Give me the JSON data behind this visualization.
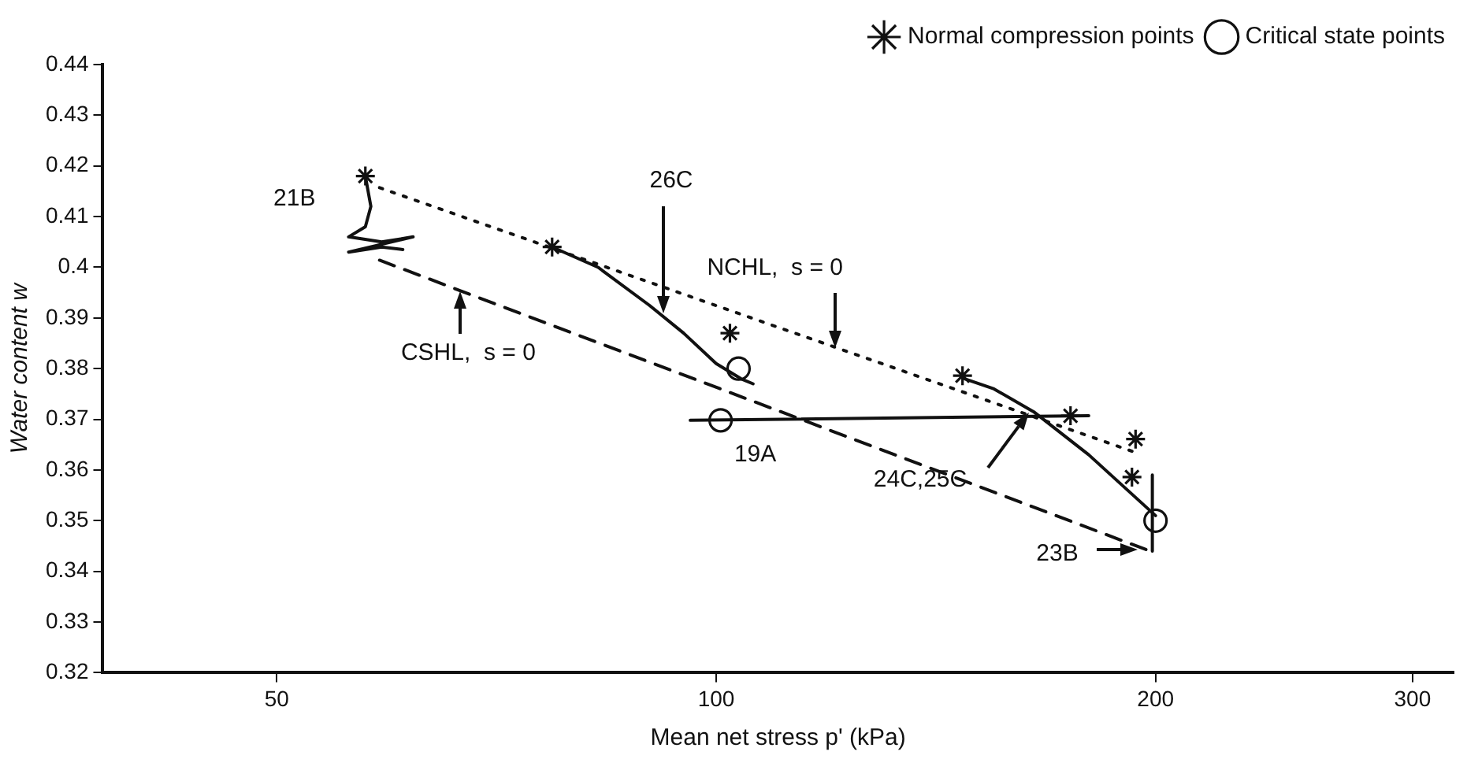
{
  "chart_data": {
    "type": "scatter",
    "xlabel": "Mean net stress p' (kPa)",
    "ylabel": "Water content w",
    "log": "x",
    "xlim": [
      38,
      320
    ],
    "xticks": [
      50,
      100,
      200,
      300
    ],
    "ylim": [
      0.32,
      0.44
    ],
    "yticks": [
      0.32,
      0.33,
      0.34,
      0.35,
      0.36,
      0.37,
      0.38,
      0.39,
      0.4,
      0.41,
      0.42,
      0.43,
      0.44
    ],
    "grid": false,
    "legend": "top right",
    "series": [
      {
        "type": "line",
        "color": "#111111",
        "line_style": "dotted",
        "marker": "none",
        "x": [
          58.8,
          195.4
        ],
        "values": [
          0.4157,
          0.3631
        ]
      },
      {
        "type": "line",
        "color": "#111111",
        "line_style": "dashed",
        "marker": "none",
        "x": [
          58.8,
          197
        ],
        "values": [
          0.4014,
          0.3443
        ]
      },
      {
        "type": "line",
        "color": "#111111",
        "line_style": "solid",
        "marker": "none",
        "x": [
          57.5,
          58,
          57.5,
          56,
          59,
          62,
          56,
          59,
          61
        ],
        "values": [
          0.418,
          0.412,
          0.408,
          0.406,
          0.405,
          0.406,
          0.403,
          0.404,
          0.4035
        ]
      },
      {
        "type": "line",
        "color": "#111111",
        "line_style": "solid",
        "marker": "none",
        "x": [
          77.2,
          83,
          90,
          95,
          100,
          104,
          106
        ],
        "values": [
          0.404,
          0.4,
          0.3925,
          0.387,
          0.381,
          0.378,
          0.377
        ]
      },
      {
        "type": "line",
        "color": "#111111",
        "line_style": "solid",
        "marker": "none",
        "x": [
          96,
          180
        ],
        "values": [
          0.3698,
          0.3707
        ]
      },
      {
        "type": "line",
        "color": "#111111",
        "line_style": "solid",
        "marker": "none",
        "x": [
          148,
          155,
          165,
          180,
          200
        ],
        "values": [
          0.378,
          0.376,
          0.3715,
          0.363,
          0.351
        ]
      },
      {
        "type": "line",
        "color": "#111111",
        "line_style": "solid",
        "marker": "none",
        "x": [
          199,
          199
        ],
        "values": [
          0.359,
          0.344
        ]
      },
      {
        "type": "scatter",
        "name": "Normal compression points",
        "color": "#111111",
        "marker": "cross",
        "x": [
          57.5,
          77.2,
          102.2,
          147.5,
          174.9,
          193.8,
          192.7
        ],
        "values": [
          0.418,
          0.404,
          0.387,
          0.3786,
          0.3707,
          0.3661,
          0.3586
        ]
      },
      {
        "type": "scatter",
        "name": "Critical state points",
        "color": "#111111",
        "marker": "circle",
        "x": [
          103.6,
          100.7,
          200
        ],
        "values": [
          0.38,
          0.3698,
          0.35
        ]
      }
    ],
    "annotations": [
      {
        "text": "21B",
        "x": 57.5,
        "y": 0.412
      },
      "26C",
      {
        "text": "NCHL,  s = 0",
        "x": 120.6,
        "y": 0.3842
      },
      {
        "text": "CSHL,  s = 0",
        "x": 66.8,
        "y": 0.3954
      },
      {
        "text": "19A",
        "x": 100.7,
        "y": 0.3698
      },
      "24C,25C",
      "23B"
    ]
  }
}
